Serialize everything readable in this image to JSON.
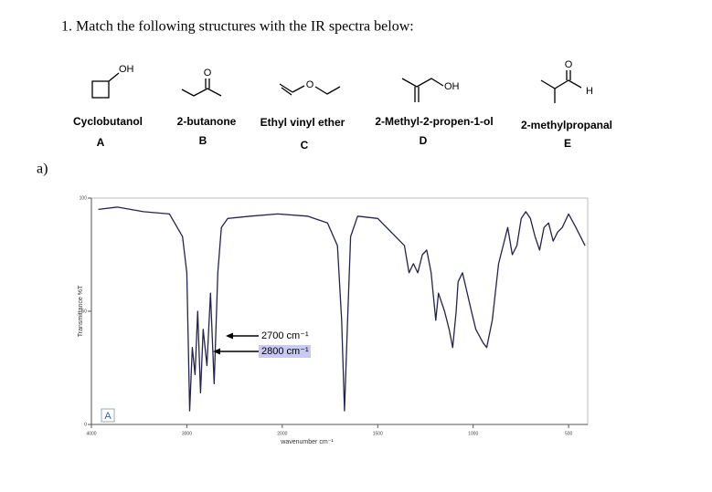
{
  "question": "1.  Match the following structures with the IR spectra below:",
  "part_label": "a)",
  "compounds": [
    {
      "name": "Cyclobutanol",
      "letter": "A",
      "atoms": [
        "OH"
      ]
    },
    {
      "name": "2-butanone",
      "letter": "B",
      "atoms": [
        "O"
      ]
    },
    {
      "name": "Ethyl vinyl ether",
      "letter": "C",
      "atoms": [
        "O"
      ]
    },
    {
      "name": "2-Methyl-2-propen-1-ol",
      "letter": "D",
      "atoms": [
        "OH"
      ]
    },
    {
      "name": "2-methylpropanal",
      "letter": "E",
      "atoms": [
        "O",
        "H"
      ]
    }
  ],
  "answer_mark": "A",
  "chart_data": {
    "type": "line",
    "xlabel": "wavenumber cm⁻¹",
    "ylabel": "Transmittance %T",
    "color": "#23234f",
    "xlim": [
      4000,
      400
    ],
    "xticks": [
      4000,
      3000,
      2000,
      1500,
      1000,
      500
    ],
    "ylim": [
      0,
      100
    ],
    "yticks": [
      0,
      50,
      100
    ],
    "annotations": [
      "2700 cm⁻¹",
      "2800 cm⁻¹"
    ],
    "x": [
      3927,
      3727,
      3455,
      3182,
      3045,
      3000,
      2971,
      2943,
      2914,
      2886,
      2857,
      2829,
      2790,
      2752,
      2714,
      2676,
      2638,
      2571,
      2333,
      2048,
      1868,
      1763,
      1711,
      1689,
      1674,
      1658,
      1642,
      1605,
      1500,
      1360,
      1336,
      1313,
      1290,
      1266,
      1243,
      1220,
      1196,
      1182,
      1150,
      1126,
      1107,
      1089,
      1079,
      1056,
      1009,
      986,
      948,
      929,
      900,
      867,
      843,
      819,
      795,
      771,
      748,
      724,
      700,
      676,
      652,
      629,
      605,
      581,
      557,
      533,
      500,
      462,
      414
    ],
    "values": [
      95,
      96,
      94,
      93,
      83,
      67,
      6,
      34,
      22,
      50,
      14,
      42,
      26,
      58,
      18,
      67,
      87,
      91,
      92,
      93,
      92,
      89,
      79,
      46,
      6,
      46,
      83,
      92,
      91,
      79,
      67,
      71,
      67,
      75,
      77,
      67,
      46,
      58,
      50,
      42,
      34,
      50,
      63,
      67,
      50,
      42,
      36,
      34,
      46,
      71,
      79,
      87,
      75,
      79,
      91,
      94,
      91,
      83,
      77,
      87,
      89,
      81,
      85,
      87,
      93,
      87,
      79
    ]
  }
}
